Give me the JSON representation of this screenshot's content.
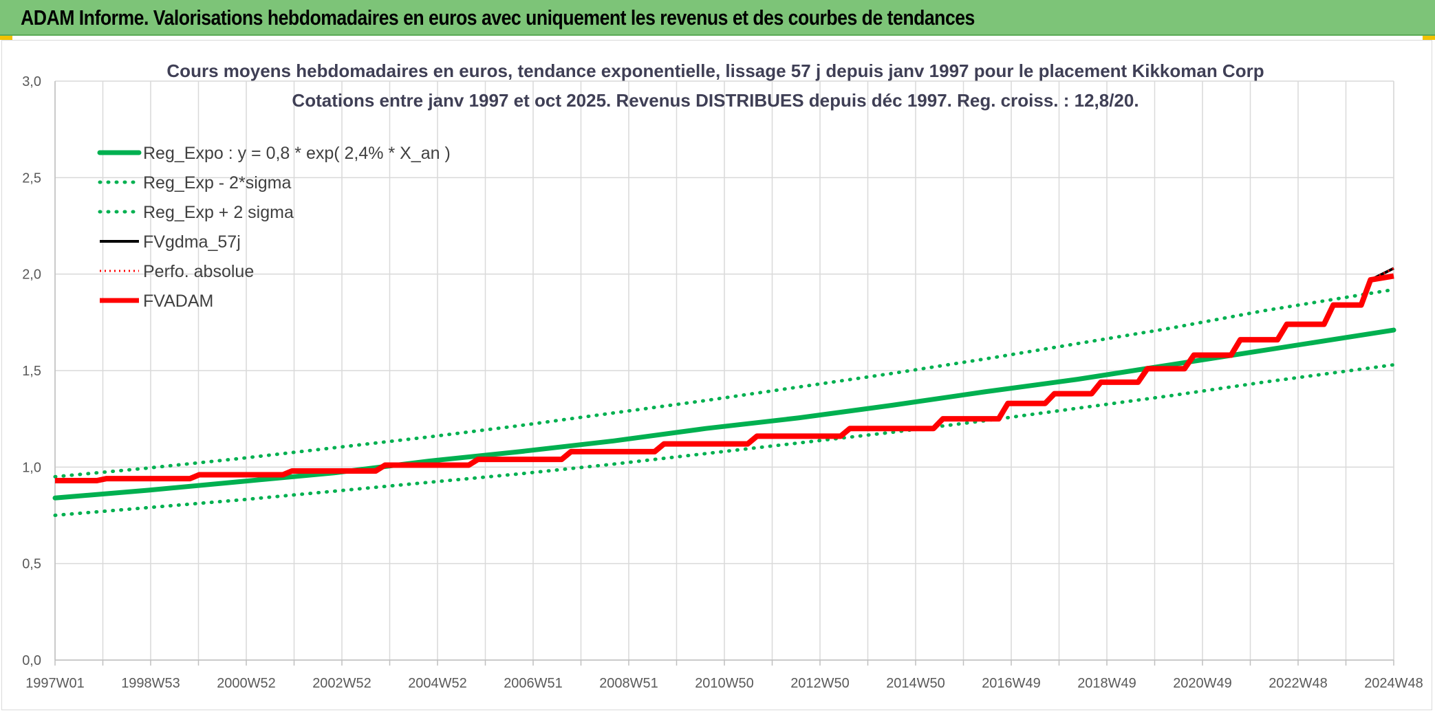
{
  "header": {
    "title": "ADAM Informe. Valorisations hebdomadaires en euros avec uniquement les revenus et des courbes de tendances"
  },
  "colors": {
    "header_bg": "#7dc478",
    "green": "#00b050",
    "red": "#ff0000",
    "black": "#000000",
    "grid": "#d9d9d9"
  },
  "chart_data": {
    "type": "line",
    "title": "Cours moyens hebdomadaires en euros, tendance exponentielle, lissage 57 j depuis janv 1997 pour le placement Kikkoman Corp",
    "subtitle": "Cotations entre janv 1997 et oct 2025. Revenus DISTRIBUES depuis déc 1997. Reg. croiss. : 12,8/20.",
    "xlabel": "",
    "ylabel": "",
    "ylim": [
      0,
      3
    ],
    "y_ticks": [
      "0,0",
      "0,5",
      "1,0",
      "1,5",
      "2,0",
      "2,5",
      "3,0"
    ],
    "x_range": [
      1997.0,
      2025.8
    ],
    "x_ticks": [
      "1997W01",
      "1998W53",
      "2000W52",
      "2002W52",
      "2004W52",
      "2006W51",
      "2008W51",
      "2010W50",
      "2012W50",
      "2014W50",
      "2016W49",
      "2018W49",
      "2020W49",
      "2022W48",
      "2024W48"
    ],
    "grid": true,
    "legend_placement": "top-left",
    "legend": [
      {
        "label": "Reg_Expo : y = 0,8 * exp( 2,4% *  X_an )",
        "style": "solid",
        "color": "#00b050"
      },
      {
        "label": "Reg_Exp - 2*sigma",
        "style": "dotted",
        "color": "#00b050"
      },
      {
        "label": "Reg_Exp + 2 sigma",
        "style": "dotted",
        "color": "#00b050"
      },
      {
        "label": "FVgdma_57j",
        "style": "solid",
        "color": "#000000"
      },
      {
        "label": "Perfo. absolue",
        "style": "dotted",
        "color": "#ff0000"
      },
      {
        "label": "FVADAM",
        "style": "solid",
        "color": "#ff0000"
      }
    ],
    "series": [
      {
        "name": "Reg_Expo : y = 0,8 * exp( 2,4% *  X_an )",
        "x": [
          1997.0,
          1999.0,
          2001.0,
          2003.0,
          2005.0,
          2007.0,
          2009.0,
          2011.0,
          2013.0,
          2015.0,
          2017.0,
          2019.0,
          2021.0,
          2023.0,
          2025.8
        ],
        "y": [
          0.84,
          0.88,
          0.925,
          0.97,
          1.03,
          1.08,
          1.135,
          1.2,
          1.255,
          1.32,
          1.39,
          1.455,
          1.53,
          1.605,
          1.71
        ]
      },
      {
        "name": "Reg_Exp - 2*sigma",
        "x": [
          1997.0,
          1999.0,
          2001.0,
          2003.0,
          2005.0,
          2007.0,
          2009.0,
          2011.0,
          2013.0,
          2015.0,
          2017.0,
          2019.0,
          2021.0,
          2023.0,
          2025.8
        ],
        "y": [
          0.75,
          0.79,
          0.83,
          0.875,
          0.92,
          0.965,
          1.015,
          1.07,
          1.125,
          1.18,
          1.24,
          1.305,
          1.37,
          1.44,
          1.53
        ]
      },
      {
        "name": "Reg_Exp + 2 sigma",
        "x": [
          1997.0,
          1999.0,
          2001.0,
          2003.0,
          2005.0,
          2007.0,
          2009.0,
          2011.0,
          2013.0,
          2015.0,
          2017.0,
          2019.0,
          2021.0,
          2023.0,
          2025.8
        ],
        "y": [
          0.95,
          0.995,
          1.045,
          1.1,
          1.155,
          1.215,
          1.28,
          1.345,
          1.415,
          1.485,
          1.56,
          1.64,
          1.72,
          1.81,
          1.92
        ]
      },
      {
        "name": "FVgdma_57j",
        "x": [
          1997.0,
          1997.9,
          1998.1,
          1999.9,
          2000.1,
          2001.9,
          2002.1,
          2003.9,
          2004.1,
          2005.9,
          2006.1,
          2007.9,
          2008.1,
          2009.9,
          2010.1,
          2011.9,
          2012.1,
          2013.9,
          2014.1,
          2015.9,
          2016.1,
          2017.3,
          2017.5,
          2018.3,
          2018.5,
          2019.3,
          2019.5,
          2020.3,
          2020.5,
          2021.3,
          2021.5,
          2022.3,
          2022.5,
          2023.3,
          2023.5,
          2024.3,
          2024.5,
          2025.1,
          2025.3,
          2025.8
        ],
        "y": [
          0.93,
          0.93,
          0.94,
          0.94,
          0.96,
          0.96,
          0.98,
          0.98,
          1.01,
          1.01,
          1.04,
          1.04,
          1.08,
          1.08,
          1.12,
          1.12,
          1.16,
          1.16,
          1.2,
          1.2,
          1.25,
          1.25,
          1.33,
          1.33,
          1.38,
          1.38,
          1.44,
          1.44,
          1.51,
          1.51,
          1.58,
          1.58,
          1.66,
          1.66,
          1.74,
          1.74,
          1.84,
          1.84,
          1.97,
          2.03
        ]
      },
      {
        "name": "Perfo. absolue",
        "x": [
          1997.0,
          1997.9,
          1998.1,
          1999.9,
          2000.1,
          2001.9,
          2002.1,
          2003.9,
          2004.1,
          2005.9,
          2006.1,
          2007.9,
          2008.1,
          2009.9,
          2010.1,
          2011.9,
          2012.1,
          2013.9,
          2014.1,
          2015.9,
          2016.1,
          2017.3,
          2017.5,
          2018.3,
          2018.5,
          2019.3,
          2019.5,
          2020.3,
          2020.5,
          2021.3,
          2021.5,
          2022.3,
          2022.5,
          2023.3,
          2023.5,
          2024.3,
          2024.5,
          2025.1,
          2025.3,
          2025.8
        ],
        "y": [
          0.93,
          0.93,
          0.94,
          0.94,
          0.96,
          0.96,
          0.98,
          0.98,
          1.01,
          1.01,
          1.04,
          1.04,
          1.08,
          1.08,
          1.12,
          1.12,
          1.16,
          1.16,
          1.2,
          1.2,
          1.25,
          1.25,
          1.33,
          1.33,
          1.38,
          1.38,
          1.44,
          1.44,
          1.51,
          1.51,
          1.58,
          1.58,
          1.66,
          1.66,
          1.74,
          1.74,
          1.84,
          1.84,
          1.97,
          2.03
        ]
      },
      {
        "name": "FVADAM",
        "x": [
          1997.0,
          1997.9,
          1998.1,
          1999.9,
          2000.1,
          2001.9,
          2002.1,
          2003.9,
          2004.1,
          2005.9,
          2006.1,
          2007.9,
          2008.1,
          2009.9,
          2010.1,
          2011.9,
          2012.1,
          2013.9,
          2014.1,
          2015.9,
          2016.1,
          2017.3,
          2017.5,
          2018.3,
          2018.5,
          2019.3,
          2019.5,
          2020.3,
          2020.5,
          2021.3,
          2021.5,
          2022.3,
          2022.5,
          2023.3,
          2023.5,
          2024.3,
          2024.5,
          2025.1,
          2025.3,
          2025.8
        ],
        "y": [
          0.93,
          0.93,
          0.94,
          0.94,
          0.96,
          0.96,
          0.98,
          0.98,
          1.01,
          1.01,
          1.04,
          1.04,
          1.08,
          1.08,
          1.12,
          1.12,
          1.16,
          1.16,
          1.2,
          1.2,
          1.25,
          1.25,
          1.33,
          1.33,
          1.38,
          1.38,
          1.44,
          1.44,
          1.51,
          1.51,
          1.58,
          1.58,
          1.66,
          1.66,
          1.74,
          1.74,
          1.84,
          1.84,
          1.97,
          1.99
        ]
      }
    ]
  }
}
